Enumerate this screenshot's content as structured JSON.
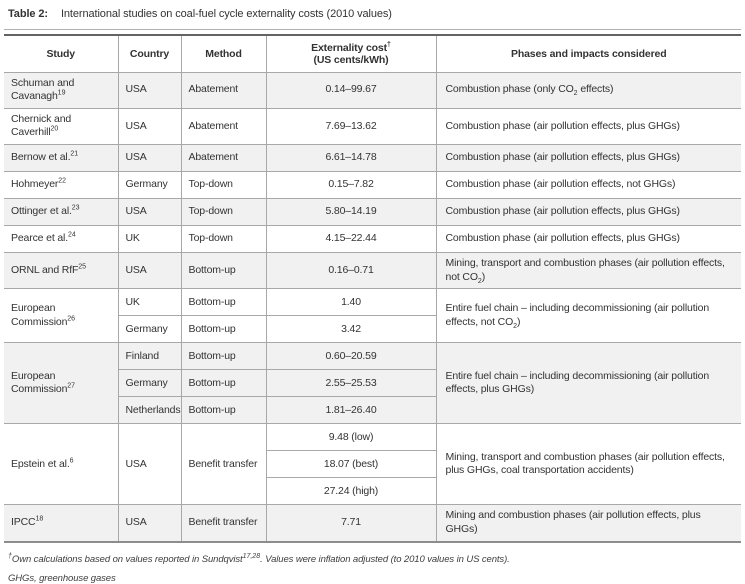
{
  "title": {
    "label": "Table 2:",
    "text": "International studies on coal-fuel cycle externality costs (2010 values)"
  },
  "table": {
    "columns": [
      {
        "key": "study",
        "label": "Study"
      },
      {
        "key": "country",
        "label": "Country"
      },
      {
        "key": "method",
        "label": "Method"
      },
      {
        "key": "cost",
        "label": "Externality cost",
        "sup": "†",
        "label2": "(US cents/kWh)"
      },
      {
        "key": "phases",
        "label": "Phases and impacts considered"
      }
    ],
    "groups": [
      {
        "study": "Schuman and Cavanagh",
        "ref": "19",
        "shaded": true,
        "rows": [
          {
            "country": "USA",
            "method": "Abatement",
            "cost": "0.14–99.67"
          }
        ],
        "phases": [
          {
            "t": "Combustion phase (only CO"
          },
          {
            "sub": "2"
          },
          {
            "t": " effects)"
          }
        ]
      },
      {
        "study": "Chernick and Caverhill",
        "ref": "20",
        "shaded": false,
        "rows": [
          {
            "country": "USA",
            "method": "Abatement",
            "cost": "7.69–13.62"
          }
        ],
        "phases": [
          {
            "t": "Combustion phase (air pollution effects, plus GHGs)"
          }
        ]
      },
      {
        "study": "Bernow et al.",
        "ref": "21",
        "shaded": true,
        "rows": [
          {
            "country": "USA",
            "method": "Abatement",
            "cost": "6.61–14.78"
          }
        ],
        "phases": [
          {
            "t": "Combustion phase (air pollution effects, plus GHGs)"
          }
        ]
      },
      {
        "study": "Hohmeyer",
        "ref": "22",
        "shaded": false,
        "rows": [
          {
            "country": "Germany",
            "method": "Top-down",
            "cost": "0.15–7.82"
          }
        ],
        "phases": [
          {
            "t": "Combustion phase (air pollution effects, not GHGs)"
          }
        ]
      },
      {
        "study": "Ottinger et al.",
        "ref": "23",
        "shaded": true,
        "rows": [
          {
            "country": "USA",
            "method": "Top-down",
            "cost": "5.80–14.19"
          }
        ],
        "phases": [
          {
            "t": "Combustion phase (air pollution effects, plus GHGs)"
          }
        ]
      },
      {
        "study": "Pearce et al.",
        "ref": "24",
        "shaded": false,
        "rows": [
          {
            "country": "UK",
            "method": "Top-down",
            "cost": "4.15–22.44"
          }
        ],
        "phases": [
          {
            "t": "Combustion phase (air pollution effects, plus GHGs)"
          }
        ]
      },
      {
        "study": "ORNL and RfF",
        "ref": "25",
        "shaded": true,
        "rows": [
          {
            "country": "USA",
            "method": "Bottom-up",
            "cost": "0.16–0.71"
          }
        ],
        "phases": [
          {
            "t": "Mining, transport and combustion phases (air pollution effects, not CO"
          },
          {
            "sub": "2"
          },
          {
            "t": ")"
          }
        ]
      },
      {
        "study": "European Commission",
        "ref": "26",
        "shaded": false,
        "rows": [
          {
            "country": "UK",
            "method": "Bottom-up",
            "cost": "1.40"
          },
          {
            "country": "Germany",
            "method": "Bottom-up",
            "cost": "3.42"
          }
        ],
        "phases": [
          {
            "t": "Entire fuel chain – including decommissioning (air pollution effects, not CO"
          },
          {
            "sub": "2"
          },
          {
            "t": ")"
          }
        ]
      },
      {
        "study": "European Commission",
        "ref": "27",
        "shaded": true,
        "rows": [
          {
            "country": "Finland",
            "method": "Bottom-up",
            "cost": "0.60–20.59"
          },
          {
            "country": "Germany",
            "method": "Bottom-up",
            "cost": "2.55–25.53"
          },
          {
            "country": "Netherlands",
            "method": "Bottom-up",
            "cost": "1.81–26.40"
          }
        ],
        "phases": [
          {
            "t": "Entire fuel chain – including decommissioning (air pollution effects, plus GHGs)"
          }
        ]
      },
      {
        "study": "Epstein et al.",
        "ref": "6",
        "shaded": false,
        "country": "USA",
        "method": "Benefit transfer",
        "rows": [
          {
            "cost": "9.48 (low)"
          },
          {
            "cost": "18.07 (best)"
          },
          {
            "cost": "27.24 (high)"
          }
        ],
        "phases": [
          {
            "t": "Mining, transport and combustion phases (air pollution effects, plus GHGs, coal transportation accidents)"
          }
        ]
      },
      {
        "study": "IPCC",
        "ref": "18",
        "shaded": true,
        "rows": [
          {
            "country": "USA",
            "method": "Benefit transfer",
            "cost": "7.71"
          }
        ],
        "phases": [
          {
            "t": "Mining and combustion phases (air pollution effects, plus GHGs)"
          }
        ]
      }
    ]
  },
  "footnotes": [
    [
      {
        "sup": "†"
      },
      {
        "t": "Own calculations based on values reported in Sundqvist"
      },
      {
        "sup": "17,28"
      },
      {
        "t": ". Values were inflation adjusted (to 2010 values in US cents)."
      }
    ],
    [
      {
        "t": "GHGs, greenhouse gases"
      }
    ]
  ]
}
